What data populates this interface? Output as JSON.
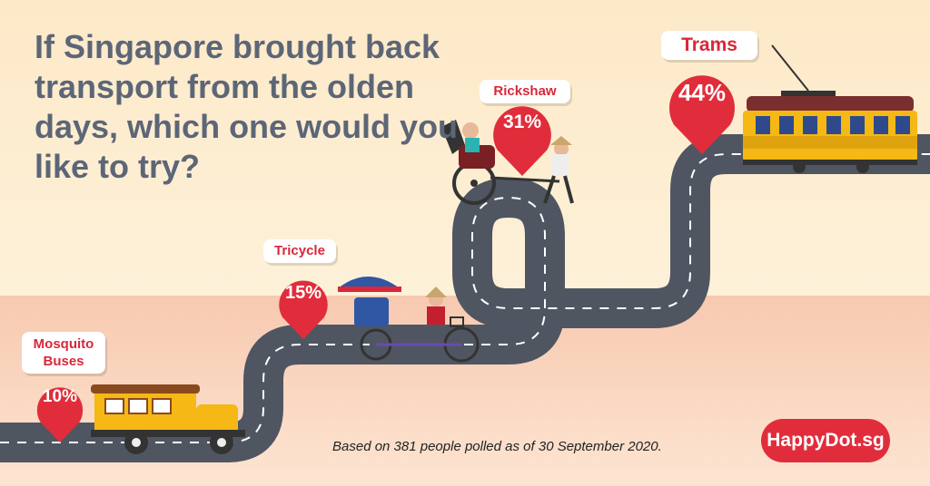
{
  "title": "If Singapore brought back transport from the olden days, which one would you like to try?",
  "footnote": "Based on 381 people polled as of 30 September 2020.",
  "brand": "HappyDot.sg",
  "colors": {
    "accent": "#e12d3b",
    "title": "#5c6677",
    "road": "#4f5662"
  },
  "chart_data": {
    "type": "bar",
    "categories": [
      "Mosquito Buses",
      "Tricycle",
      "Rickshaw",
      "Trams"
    ],
    "values": [
      10,
      15,
      31,
      44
    ],
    "value_labels": [
      "10%",
      "15%",
      "31%",
      "44%"
    ],
    "unit": "%",
    "title": "If Singapore brought back transport from the olden days, which one would you like to try?"
  }
}
